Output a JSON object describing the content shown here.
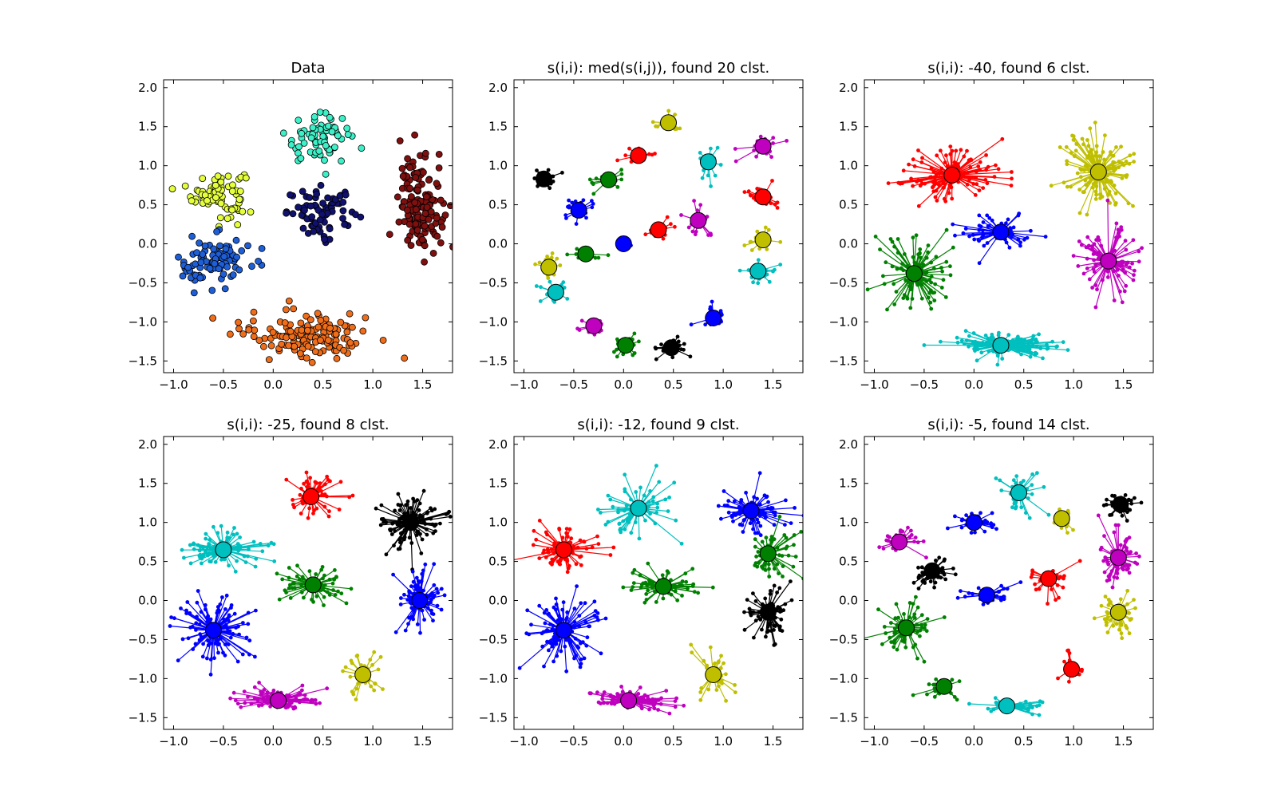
{
  "colors": {
    "r": "#ff0000",
    "g": "#008000",
    "b": "#0000ff",
    "c": "#00bfbf",
    "m": "#bf00bf",
    "y": "#bfbf00",
    "k": "#000000",
    "data_yellow": "#e5ff3a",
    "data_teal": "#3cf0c8",
    "data_darkblue": "#10106e",
    "data_darkred": "#801010",
    "data_blue": "#1e5fd8",
    "data_orange": "#f06d1a"
  },
  "chart_data": [
    {
      "type": "scatter",
      "title": "Data",
      "xlabel": "",
      "ylabel": "",
      "xlim": [
        -1.1,
        1.8
      ],
      "ylim": [
        -1.65,
        2.1
      ],
      "xticks": [
        "−1.0",
        "−0.5",
        "0.0",
        "0.5",
        "1.0",
        "1.5"
      ],
      "yticks": [
        "2.0",
        "1.5",
        "1.0",
        "0.5",
        "0.0",
        "−0.5",
        "−1.0",
        "−1.5"
      ],
      "xtick_values": [
        -1.0,
        -0.5,
        0.0,
        0.5,
        1.0,
        1.5
      ],
      "ytick_values": [
        2.0,
        1.5,
        1.0,
        0.5,
        0.0,
        -0.5,
        -1.0,
        -1.5
      ],
      "grid": false,
      "groups": [
        {
          "color": "data_yellow",
          "center": [
            -0.55,
            0.65
          ],
          "spread": [
            0.22,
            0.25
          ],
          "n": 85
        },
        {
          "color": "data_teal",
          "center": [
            0.45,
            1.35
          ],
          "spread": [
            0.28,
            0.25
          ],
          "n": 70
        },
        {
          "color": "data_darkblue",
          "center": [
            0.5,
            0.4
          ],
          "spread": [
            0.3,
            0.25
          ],
          "n": 75
        },
        {
          "color": "data_darkred",
          "center": [
            1.48,
            0.5
          ],
          "spread": [
            0.18,
            0.5
          ],
          "n": 150
        },
        {
          "color": "data_blue",
          "center": [
            -0.6,
            -0.25
          ],
          "spread": [
            0.3,
            0.28
          ],
          "n": 90
        },
        {
          "color": "data_orange",
          "center": [
            0.35,
            -1.15
          ],
          "spread": [
            0.55,
            0.25
          ],
          "n": 140
        }
      ]
    },
    {
      "type": "scatter",
      "title": "s(i,i): med(s(i,j)), found 20 clst.",
      "xlim": [
        -1.1,
        1.8
      ],
      "ylim": [
        -1.65,
        2.1
      ],
      "xticks": [
        "−1.0",
        "−0.5",
        "0.0",
        "0.5",
        "1.0",
        "1.5"
      ],
      "yticks": [
        "2.0",
        "1.5",
        "1.0",
        "0.5",
        "0.0",
        "−0.5",
        "−1.0",
        "−1.5"
      ],
      "xtick_values": [
        -1.0,
        -0.5,
        0.0,
        0.5,
        1.0,
        1.5
      ],
      "ytick_values": [
        2.0,
        1.5,
        1.0,
        0.5,
        0.0,
        -0.5,
        -1.0,
        -1.5
      ],
      "grid": false,
      "clusters": [
        {
          "color": "k",
          "center": [
            -0.8,
            0.83
          ],
          "spread": [
            0.12,
            0.12
          ],
          "n": 20
        },
        {
          "color": "g",
          "center": [
            -0.15,
            0.82
          ],
          "spread": [
            0.14,
            0.1
          ],
          "n": 20
        },
        {
          "color": "r",
          "center": [
            0.15,
            1.13
          ],
          "spread": [
            0.14,
            0.1
          ],
          "n": 20
        },
        {
          "color": "y",
          "center": [
            0.45,
            1.55
          ],
          "spread": [
            0.12,
            0.12
          ],
          "n": 18
        },
        {
          "color": "c",
          "center": [
            0.85,
            1.05
          ],
          "spread": [
            0.12,
            0.2
          ],
          "n": 20
        },
        {
          "color": "m",
          "center": [
            1.4,
            1.25
          ],
          "spread": [
            0.14,
            0.14
          ],
          "n": 25
        },
        {
          "color": "b",
          "center": [
            -0.45,
            0.43
          ],
          "spread": [
            0.14,
            0.14
          ],
          "n": 22
        },
        {
          "color": "r",
          "center": [
            1.4,
            0.6
          ],
          "spread": [
            0.14,
            0.14
          ],
          "n": 25
        },
        {
          "color": "r",
          "center": [
            0.35,
            0.18
          ],
          "spread": [
            0.12,
            0.1
          ],
          "n": 18
        },
        {
          "color": "m",
          "center": [
            0.75,
            0.3
          ],
          "spread": [
            0.14,
            0.2
          ],
          "n": 20
        },
        {
          "color": "y",
          "center": [
            1.4,
            0.05
          ],
          "spread": [
            0.14,
            0.14
          ],
          "n": 22
        },
        {
          "color": "b",
          "center": [
            0.0,
            0.0
          ],
          "spread": [
            0.08,
            0.06
          ],
          "n": 10
        },
        {
          "color": "g",
          "center": [
            -0.38,
            -0.13
          ],
          "spread": [
            0.14,
            0.1
          ],
          "n": 20
        },
        {
          "color": "y",
          "center": [
            -0.75,
            -0.3
          ],
          "spread": [
            0.14,
            0.15
          ],
          "n": 22
        },
        {
          "color": "c",
          "center": [
            1.35,
            -0.35
          ],
          "spread": [
            0.15,
            0.14
          ],
          "n": 22
        },
        {
          "color": "c",
          "center": [
            -0.68,
            -0.62
          ],
          "spread": [
            0.12,
            0.14
          ],
          "n": 18
        },
        {
          "color": "b",
          "center": [
            0.9,
            -0.95
          ],
          "spread": [
            0.12,
            0.14
          ],
          "n": 18
        },
        {
          "color": "m",
          "center": [
            -0.3,
            -1.05
          ],
          "spread": [
            0.13,
            0.1
          ],
          "n": 18
        },
        {
          "color": "g",
          "center": [
            0.02,
            -1.3
          ],
          "spread": [
            0.16,
            0.1
          ],
          "n": 22
        },
        {
          "color": "k",
          "center": [
            0.48,
            -1.33
          ],
          "spread": [
            0.16,
            0.1
          ],
          "n": 22
        }
      ]
    },
    {
      "type": "scatter",
      "title": "s(i,i): -40, found 6 clst.",
      "xlim": [
        -1.1,
        1.8
      ],
      "ylim": [
        -1.65,
        2.1
      ],
      "xticks": [
        "−1.0",
        "−0.5",
        "0.0",
        "0.5",
        "1.0",
        "1.5"
      ],
      "yticks": [
        "2.0",
        "1.5",
        "1.0",
        "0.5",
        "0.0",
        "−0.5",
        "−1.0",
        "−1.5"
      ],
      "xtick_values": [
        -1.0,
        -0.5,
        0.0,
        0.5,
        1.0,
        1.5
      ],
      "ytick_values": [
        2.0,
        1.5,
        1.0,
        0.5,
        0.0,
        -0.5,
        -1.0,
        -1.5
      ],
      "grid": false,
      "clusters": [
        {
          "color": "r",
          "center": [
            -0.22,
            0.88
          ],
          "spread": [
            0.45,
            0.3
          ],
          "n": 120
        },
        {
          "color": "y",
          "center": [
            1.25,
            0.92
          ],
          "spread": [
            0.3,
            0.4
          ],
          "n": 120
        },
        {
          "color": "b",
          "center": [
            0.27,
            0.15
          ],
          "spread": [
            0.35,
            0.2
          ],
          "n": 60
        },
        {
          "color": "m",
          "center": [
            1.35,
            -0.22
          ],
          "spread": [
            0.25,
            0.4
          ],
          "n": 90
        },
        {
          "color": "g",
          "center": [
            -0.6,
            -0.38
          ],
          "spread": [
            0.3,
            0.4
          ],
          "n": 100
        },
        {
          "color": "c",
          "center": [
            0.27,
            -1.3
          ],
          "spread": [
            0.45,
            0.12
          ],
          "n": 120
        }
      ]
    },
    {
      "type": "scatter",
      "title": "s(i,i): -25, found 8 clst.",
      "xlim": [
        -1.1,
        1.8
      ],
      "ylim": [
        -1.65,
        2.1
      ],
      "xticks": [
        "−1.0",
        "−0.5",
        "0.0",
        "0.5",
        "1.0",
        "1.5"
      ],
      "yticks": [
        "2.0",
        "1.5",
        "1.0",
        "0.5",
        "0.0",
        "−0.5",
        "−1.0",
        "−1.5"
      ],
      "xtick_values": [
        -1.0,
        -0.5,
        0.0,
        0.5,
        1.0,
        1.5
      ],
      "ytick_values": [
        2.0,
        1.5,
        1.0,
        0.5,
        0.0,
        -0.5,
        -1.0,
        -1.5
      ],
      "grid": false,
      "clusters": [
        {
          "color": "r",
          "center": [
            0.38,
            1.33
          ],
          "spread": [
            0.25,
            0.25
          ],
          "n": 60
        },
        {
          "color": "k",
          "center": [
            1.38,
            1.0
          ],
          "spread": [
            0.25,
            0.3
          ],
          "n": 100
        },
        {
          "color": "c",
          "center": [
            -0.5,
            0.65
          ],
          "spread": [
            0.35,
            0.2
          ],
          "n": 80
        },
        {
          "color": "g",
          "center": [
            0.4,
            0.2
          ],
          "spread": [
            0.3,
            0.2
          ],
          "n": 60
        },
        {
          "color": "b",
          "center": [
            1.47,
            0.0
          ],
          "spread": [
            0.18,
            0.35
          ],
          "n": 90
        },
        {
          "color": "b",
          "center": [
            -0.6,
            -0.38
          ],
          "spread": [
            0.3,
            0.35
          ],
          "n": 100
        },
        {
          "color": "y",
          "center": [
            0.9,
            -0.95
          ],
          "spread": [
            0.15,
            0.25
          ],
          "n": 40
        },
        {
          "color": "m",
          "center": [
            0.05,
            -1.28
          ],
          "spread": [
            0.35,
            0.12
          ],
          "n": 90
        }
      ]
    },
    {
      "type": "scatter",
      "title": "s(i,i): -12, found 9 clst.",
      "xlim": [
        -1.1,
        1.8
      ],
      "ylim": [
        -1.65,
        2.1
      ],
      "xticks": [
        "−1.0",
        "−0.5",
        "0.0",
        "0.5",
        "1.0",
        "1.5"
      ],
      "yticks": [
        "2.0",
        "1.5",
        "1.0",
        "0.5",
        "0.0",
        "−0.5",
        "−1.0",
        "−1.5"
      ],
      "xtick_values": [
        -1.0,
        -0.5,
        0.0,
        0.5,
        1.0,
        1.5
      ],
      "ytick_values": [
        2.0,
        1.5,
        1.0,
        0.5,
        0.0,
        -0.5,
        -1.0,
        -1.5
      ],
      "grid": false,
      "clusters": [
        {
          "color": "c",
          "center": [
            0.15,
            1.18
          ],
          "spread": [
            0.3,
            0.35
          ],
          "n": 60
        },
        {
          "color": "b",
          "center": [
            1.28,
            1.15
          ],
          "spread": [
            0.3,
            0.25
          ],
          "n": 80
        },
        {
          "color": "r",
          "center": [
            -0.6,
            0.65
          ],
          "spread": [
            0.3,
            0.25
          ],
          "n": 80
        },
        {
          "color": "g",
          "center": [
            1.45,
            0.6
          ],
          "spread": [
            0.2,
            0.25
          ],
          "n": 60
        },
        {
          "color": "g",
          "center": [
            0.4,
            0.18
          ],
          "spread": [
            0.3,
            0.2
          ],
          "n": 60
        },
        {
          "color": "k",
          "center": [
            1.45,
            -0.15
          ],
          "spread": [
            0.2,
            0.3
          ],
          "n": 70
        },
        {
          "color": "b",
          "center": [
            -0.6,
            -0.38
          ],
          "spread": [
            0.3,
            0.35
          ],
          "n": 100
        },
        {
          "color": "y",
          "center": [
            0.9,
            -0.95
          ],
          "spread": [
            0.15,
            0.25
          ],
          "n": 40
        },
        {
          "color": "m",
          "center": [
            0.05,
            -1.28
          ],
          "spread": [
            0.35,
            0.12
          ],
          "n": 90
        }
      ]
    },
    {
      "type": "scatter",
      "title": "s(i,i): -5, found 14 clst.",
      "xlim": [
        -1.1,
        1.8
      ],
      "ylim": [
        -1.65,
        2.1
      ],
      "xticks": [
        "−1.0",
        "−0.5",
        "0.0",
        "0.5",
        "1.0",
        "1.5"
      ],
      "yticks": [
        "2.0",
        "1.5",
        "1.0",
        "0.5",
        "0.0",
        "−0.5",
        "−1.0",
        "−1.5"
      ],
      "xtick_values": [
        -1.0,
        -0.5,
        0.0,
        0.5,
        1.0,
        1.5
      ],
      "ytick_values": [
        2.0,
        1.5,
        1.0,
        0.5,
        0.0,
        -0.5,
        -1.0,
        -1.5
      ],
      "grid": false,
      "clusters": [
        {
          "color": "c",
          "center": [
            0.45,
            1.38
          ],
          "spread": [
            0.2,
            0.25
          ],
          "n": 35
        },
        {
          "color": "k",
          "center": [
            1.47,
            1.23
          ],
          "spread": [
            0.14,
            0.15
          ],
          "n": 40
        },
        {
          "color": "y",
          "center": [
            0.88,
            1.05
          ],
          "spread": [
            0.1,
            0.15
          ],
          "n": 15
        },
        {
          "color": "b",
          "center": [
            0.0,
            1.0
          ],
          "spread": [
            0.2,
            0.12
          ],
          "n": 30
        },
        {
          "color": "m",
          "center": [
            -0.75,
            0.75
          ],
          "spread": [
            0.2,
            0.15
          ],
          "n": 30
        },
        {
          "color": "m",
          "center": [
            1.45,
            0.55
          ],
          "spread": [
            0.15,
            0.25
          ],
          "n": 60
        },
        {
          "color": "k",
          "center": [
            -0.42,
            0.38
          ],
          "spread": [
            0.2,
            0.18
          ],
          "n": 40
        },
        {
          "color": "r",
          "center": [
            0.75,
            0.28
          ],
          "spread": [
            0.2,
            0.15
          ],
          "n": 30
        },
        {
          "color": "b",
          "center": [
            0.13,
            0.07
          ],
          "spread": [
            0.2,
            0.1
          ],
          "n": 30
        },
        {
          "color": "y",
          "center": [
            1.45,
            -0.15
          ],
          "spread": [
            0.15,
            0.25
          ],
          "n": 50
        },
        {
          "color": "g",
          "center": [
            -0.68,
            -0.35
          ],
          "spread": [
            0.25,
            0.3
          ],
          "n": 60
        },
        {
          "color": "r",
          "center": [
            0.98,
            -0.88
          ],
          "spread": [
            0.12,
            0.2
          ],
          "n": 20
        },
        {
          "color": "g",
          "center": [
            -0.3,
            -1.1
          ],
          "spread": [
            0.15,
            0.12
          ],
          "n": 25
        },
        {
          "color": "c",
          "center": [
            0.33,
            -1.35
          ],
          "spread": [
            0.25,
            0.08
          ],
          "n": 35
        }
      ]
    }
  ]
}
